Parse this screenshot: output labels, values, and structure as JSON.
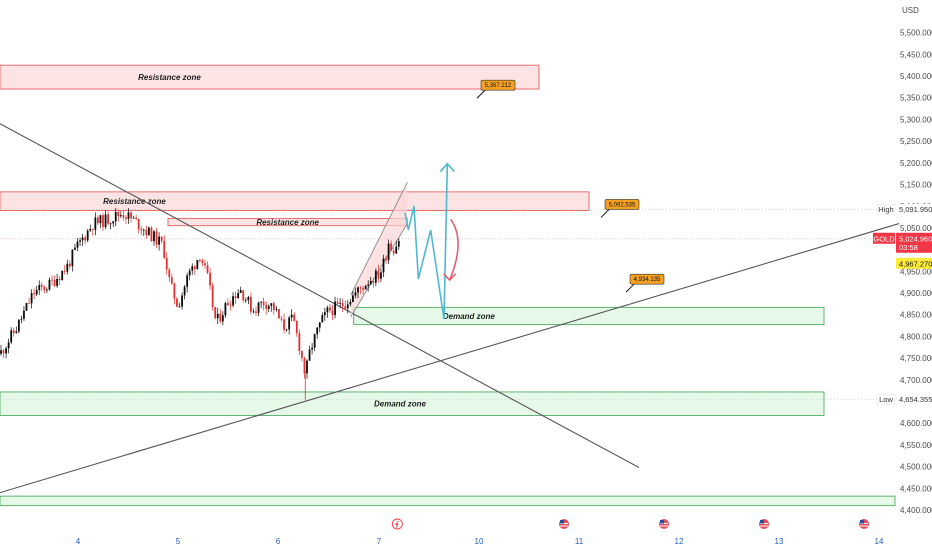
{
  "chart_data": {
    "type": "candlestick",
    "currency": "USD",
    "symbol": "GOLD",
    "ylim": [
      4380,
      5580
    ],
    "xlim": [
      3.3,
      14.2
    ],
    "y_ticks": [
      4400,
      4450,
      4500,
      4550,
      4600,
      4650,
      4700,
      4750,
      4800,
      4850,
      4900,
      4950,
      5000,
      5050,
      5100,
      5150,
      5200,
      5250,
      5300,
      5350,
      5400,
      5450,
      5500
    ],
    "y_tick_labels": [
      "4,400.000",
      "4,450.000",
      "4,500.000",
      "4,550.000",
      "4,600.000",
      "4,650.000",
      "4,700.000",
      "4,750.000",
      "4,800.000",
      "4,850.000",
      "4,900.000",
      "4,950.000",
      "5,000.000",
      "5,050.000",
      "5,100.000",
      "5,150.000",
      "5,200.000",
      "5,250.000",
      "5,300.000",
      "5,350.000",
      "5,400.000",
      "5,450.000",
      "5,500.000"
    ],
    "x_ticks": [
      4,
      5,
      6,
      7,
      10,
      11,
      12,
      13,
      14
    ],
    "x_tick_labels": [
      "4",
      "5",
      "6",
      "7",
      "10",
      "11",
      "12",
      "13",
      "14"
    ],
    "price_path": [
      [
        3.3,
        4760
      ],
      [
        3.45,
        4820
      ],
      [
        3.6,
        4900
      ],
      [
        3.75,
        4920
      ],
      [
        3.9,
        4960
      ],
      [
        4.0,
        5010
      ],
      [
        4.15,
        5060
      ],
      [
        4.3,
        5070
      ],
      [
        4.45,
        5085
      ],
      [
        4.6,
        5060
      ],
      [
        4.75,
        5030
      ],
      [
        4.85,
        5010
      ],
      [
        4.92,
        4920
      ],
      [
        5.0,
        4870
      ],
      [
        5.1,
        4940
      ],
      [
        5.22,
        4990
      ],
      [
        5.3,
        4930
      ],
      [
        5.38,
        4830
      ],
      [
        5.5,
        4880
      ],
      [
        5.62,
        4910
      ],
      [
        5.75,
        4860
      ],
      [
        5.85,
        4880
      ],
      [
        5.95,
        4870
      ],
      [
        6.05,
        4820
      ],
      [
        6.15,
        4840
      ],
      [
        6.22,
        4770
      ],
      [
        6.27,
        4710
      ],
      [
        6.32,
        4770
      ],
      [
        6.42,
        4830
      ],
      [
        6.5,
        4860
      ],
      [
        6.62,
        4870
      ],
      [
        6.75,
        4895
      ],
      [
        6.9,
        4930
      ],
      [
        7.05,
        4950
      ],
      [
        7.2,
        4985
      ],
      [
        7.28,
        5020
      ],
      [
        7.4,
        5000
      ],
      [
        7.5,
        5010
      ],
      [
        7.6,
        5025
      ]
    ],
    "zones": [
      {
        "kind": "resistance",
        "label": "Resistance  zone",
        "y_low": 5370,
        "y_high": 5425,
        "x_start": 3.3,
        "x_end": 10.6
      },
      {
        "kind": "resistance",
        "label": "Resistance  zone",
        "y_low": 5090,
        "y_high": 5133,
        "x_start": 3.3,
        "x_end": 11.1
      },
      {
        "kind": "resistance",
        "label": "Resistance  zone",
        "y_low": 5055,
        "y_high": 5072,
        "x_start": 4.9,
        "x_end": 7.85
      },
      {
        "kind": "demand",
        "label": "Demand zone",
        "y_low": 4827,
        "y_high": 4867,
        "x_start": 6.75,
        "x_end": 13.45
      },
      {
        "kind": "demand",
        "label": "Demand zone",
        "y_low": 4618,
        "y_high": 4672,
        "x_start": 3.3,
        "x_end": 13.45
      },
      {
        "kind": "demand",
        "label": "",
        "y_low": 4410,
        "y_high": 4432,
        "x_start": 3.3,
        "x_end": 14.2
      }
    ],
    "callouts": [
      {
        "label": "5,367.212",
        "y": 5367.212,
        "x": 9.88
      },
      {
        "label": "5,092.535",
        "y": 5092.535,
        "x": 11.2
      },
      {
        "label": "4,934.135",
        "y": 4934.135,
        "x": 11.45
      }
    ],
    "trendlines": [
      {
        "name": "descending",
        "from": [
          3.3,
          5290
        ],
        "to": [
          11.6,
          4498
        ]
      },
      {
        "name": "ascending",
        "from": [
          3.3,
          4440
        ],
        "to": [
          14.2,
          5060
        ]
      }
    ],
    "channel": {
      "lower": [
        [
          6.72,
          4845
        ],
        [
          7.85,
          5060
        ]
      ],
      "upper": [
        [
          6.72,
          4895
        ],
        [
          7.85,
          5155
        ]
      ]
    },
    "projection_path": [
      [
        7.78,
        5085
      ],
      [
        7.88,
        5045
      ],
      [
        8.05,
        5100
      ],
      [
        8.18,
        4932
      ],
      [
        8.55,
        5045
      ],
      [
        8.95,
        4840
      ],
      [
        9.05,
        5198
      ]
    ],
    "red_arrow": [
      [
        9.15,
        5070
      ],
      [
        9.25,
        5020
      ],
      [
        9.12,
        4930
      ]
    ],
    "price_tags": [
      {
        "label": "High",
        "value": "5,091.950",
        "y": 5091.95
      },
      {
        "label": "GOLD",
        "value": "5,024.960",
        "extra": "03:58",
        "y": 5024.96
      },
      {
        "label": "",
        "value": "4,967.270",
        "y": 4967.27
      },
      {
        "label": "Low",
        "value": "4,654.355",
        "y": 4654.355
      }
    ],
    "events": [
      7.55,
      10.85,
      11.85,
      12.85,
      13.85
    ],
    "colors": {
      "resistance_fill": "#fde4e4",
      "resistance_border": "#e05050",
      "demand_fill": "#e6f8e8",
      "demand_border": "#3aa050",
      "bull": "#0a0a0a",
      "bear": "#e03030",
      "projection": "#4fb8d0",
      "red_arrow": "#e06070",
      "callout": "#f5a020",
      "gold_tag": "#f23645",
      "yellow_tag": "#ffeb3b",
      "trendline": "#555555"
    }
  },
  "axis": {
    "currency": "USD"
  }
}
